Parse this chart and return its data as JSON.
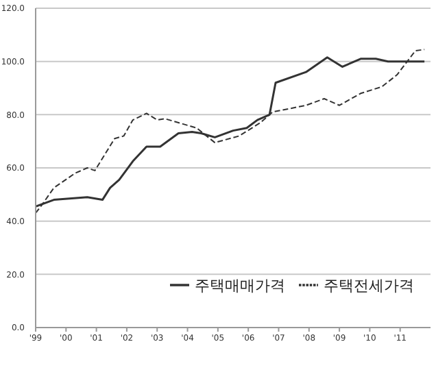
{
  "chart_data": {
    "type": "line",
    "xlim": [
      1999,
      2012
    ],
    "xticks": [
      {
        "value": 1999,
        "label": "'99"
      },
      {
        "value": 2000,
        "label": "'00"
      },
      {
        "value": 2001,
        "label": "'01"
      },
      {
        "value": 2002,
        "label": "'02"
      },
      {
        "value": 2003,
        "label": "'03"
      },
      {
        "value": 2004,
        "label": "'04"
      },
      {
        "value": 2005,
        "label": "'05"
      },
      {
        "value": 2006,
        "label": "'06"
      },
      {
        "value": 2007,
        "label": "'07"
      },
      {
        "value": 2008,
        "label": "'08"
      },
      {
        "value": 2009,
        "label": "'09"
      },
      {
        "value": 2010,
        "label": "'10"
      },
      {
        "value": 2011,
        "label": "'11"
      }
    ],
    "ylim": [
      0,
      120
    ],
    "yticks": [
      {
        "value": 0,
        "label": "0.0"
      },
      {
        "value": 20,
        "label": "20.0"
      },
      {
        "value": 40,
        "label": "40.0"
      },
      {
        "value": 60,
        "label": "60.0"
      },
      {
        "value": 80,
        "label": "80.0"
      },
      {
        "value": 100,
        "label": "100.0"
      },
      {
        "value": 120,
        "label": "120.0"
      }
    ],
    "grid": "y",
    "legend": "bottom right",
    "marker": "none",
    "series": [
      {
        "name": "주택매매가격",
        "color": "#333333",
        "line_style": "solid",
        "x": [
          1999,
          1999.6,
          2000.7,
          2001.2,
          2001.45,
          2001.75,
          2002.2,
          2002.65,
          2003.1,
          2003.7,
          2004.15,
          2004.45,
          2004.9,
          2005.5,
          2005.95,
          2006.3,
          2006.7,
          2006.9,
          2007.9,
          2008.6,
          2009.1,
          2009.7,
          2010.2,
          2010.6,
          2011.8
        ],
        "values": [
          45.5,
          48,
          49,
          48,
          52.5,
          55.5,
          62.5,
          68,
          68,
          73,
          73.5,
          73,
          71.5,
          74,
          75,
          78,
          80,
          92,
          96,
          101.5,
          98,
          101,
          101,
          100,
          100
        ]
      },
      {
        "name": "주택전세가격",
        "color": "#333333",
        "line_style": "dashed",
        "x": [
          1999,
          1999.2,
          1999.6,
          2000.3,
          2000.7,
          2000.95,
          2001.6,
          2001.9,
          2002.2,
          2002.65,
          2003,
          2003.25,
          2004,
          2004.3,
          2004.9,
          2005.7,
          2006.4,
          2006.8,
          2007.9,
          2008.5,
          2009,
          2009.7,
          2010.4,
          2010.9,
          2011.5,
          2011.8
        ],
        "values": [
          43,
          46,
          52.5,
          58,
          60,
          59,
          71,
          72,
          78,
          80.5,
          78,
          78.5,
          76,
          75,
          69.5,
          72,
          77,
          81,
          83.5,
          86,
          83.5,
          88,
          90.5,
          95,
          104,
          104.5
        ]
      }
    ]
  }
}
